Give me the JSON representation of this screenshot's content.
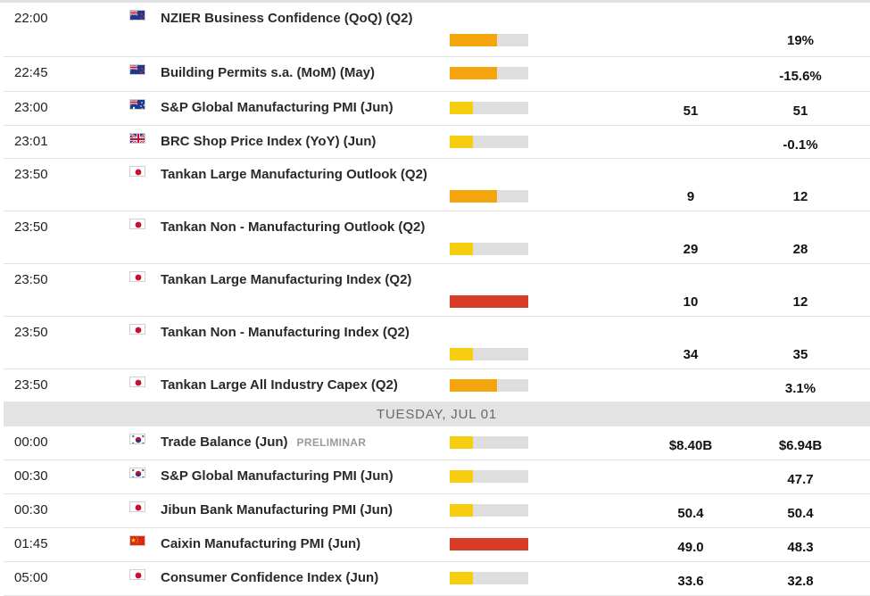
{
  "colors": {
    "high": "#d63c26",
    "medium": "#f4a40c",
    "low": "#f7cd10",
    "track": "#dedede"
  },
  "rows_before": [
    {
      "time": "22:00",
      "flag": "nz",
      "flag_icon": "new-zealand-flag-icon",
      "event": "NZIER Business Confidence (QoQ) (Q2)",
      "impact": "medium",
      "previous": "",
      "consensus": "19%"
    },
    {
      "time": "22:45",
      "flag": "nz",
      "flag_icon": "new-zealand-flag-icon",
      "event": "Building Permits s.a. (MoM) (May)",
      "impact": "medium",
      "previous": "",
      "consensus": "-15.6%"
    },
    {
      "time": "23:00",
      "flag": "au",
      "flag_icon": "australia-flag-icon",
      "event": "S&P Global Manufacturing PMI (Jun)",
      "impact": "low",
      "previous": "51",
      "consensus": "51"
    },
    {
      "time": "23:01",
      "flag": "uk",
      "flag_icon": "united-kingdom-flag-icon",
      "event": "BRC Shop Price Index (YoY) (Jun)",
      "impact": "low",
      "previous": "",
      "consensus": "-0.1%"
    },
    {
      "time": "23:50",
      "flag": "jp",
      "flag_icon": "japan-flag-icon",
      "event": "Tankan Large Manufacturing Outlook (Q2)",
      "impact": "medium",
      "previous": "9",
      "consensus": "12"
    },
    {
      "time": "23:50",
      "flag": "jp",
      "flag_icon": "japan-flag-icon",
      "event": "Tankan Non - Manufacturing Outlook (Q2)",
      "impact": "low",
      "previous": "29",
      "consensus": "28"
    },
    {
      "time": "23:50",
      "flag": "jp",
      "flag_icon": "japan-flag-icon",
      "event": "Tankan Large Manufacturing Index (Q2)",
      "impact": "high",
      "previous": "10",
      "consensus": "12"
    },
    {
      "time": "23:50",
      "flag": "jp",
      "flag_icon": "japan-flag-icon",
      "event": "Tankan Non - Manufacturing Index (Q2)",
      "impact": "low",
      "previous": "34",
      "consensus": "35"
    },
    {
      "time": "23:50",
      "flag": "jp",
      "flag_icon": "japan-flag-icon",
      "event": "Tankan Large All Industry Capex (Q2)",
      "impact": "medium",
      "previous": "",
      "consensus": "3.1%"
    }
  ],
  "day_header": "TUESDAY, JUL 01",
  "rows_after": [
    {
      "time": "00:00",
      "flag": "kr",
      "flag_icon": "south-korea-flag-icon",
      "event": "Trade Balance (Jun)",
      "tag": "PRELIMINAR",
      "impact": "low",
      "previous": "$8.40B",
      "consensus": "$6.94B"
    },
    {
      "time": "00:30",
      "flag": "kr",
      "flag_icon": "south-korea-flag-icon",
      "event": "S&P Global Manufacturing PMI (Jun)",
      "impact": "low",
      "previous": "",
      "consensus": "47.7"
    },
    {
      "time": "00:30",
      "flag": "jp",
      "flag_icon": "japan-flag-icon",
      "event": "Jibun Bank Manufacturing PMI (Jun)",
      "impact": "low",
      "previous": "50.4",
      "consensus": "50.4"
    },
    {
      "time": "01:45",
      "flag": "cn",
      "flag_icon": "china-flag-icon",
      "event": "Caixin Manufacturing PMI (Jun)",
      "impact": "high",
      "previous": "49.0",
      "consensus": "48.3"
    },
    {
      "time": "05:00",
      "flag": "jp",
      "flag_icon": "japan-flag-icon",
      "event": "Consumer Confidence Index (Jun)",
      "impact": "low",
      "previous": "33.6",
      "consensus": "32.8"
    }
  ]
}
